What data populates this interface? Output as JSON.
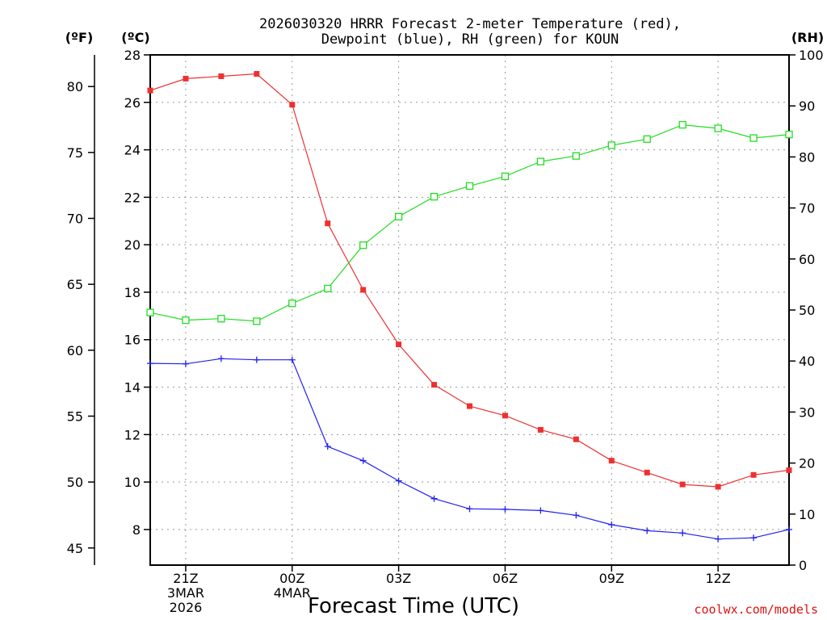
{
  "chart_data": {
    "type": "line",
    "title_line1": "2026030320 HRRR Forecast 2-meter Temperature (red),",
    "title_line2": "Dewpoint (blue), RH (green) for KOUN",
    "xlabel": "Forecast Time (UTC)",
    "credit": "coolwx.com/models",
    "units": {
      "f": "(ºF)",
      "c": "(ºC)",
      "rh": "(RH)"
    },
    "x_hours": [
      20,
      21,
      22,
      23,
      24,
      25,
      26,
      27,
      28,
      29,
      30,
      31,
      32,
      33,
      34,
      35,
      36,
      37,
      38
    ],
    "x_ticks": [
      {
        "hour": 21,
        "label": "21Z",
        "sub1": "3MAR",
        "sub2": "2026"
      },
      {
        "hour": 24,
        "label": "00Z",
        "sub1": "4MAR",
        "sub2": ""
      },
      {
        "hour": 27,
        "label": "03Z",
        "sub1": "",
        "sub2": ""
      },
      {
        "hour": 30,
        "label": "06Z",
        "sub1": "",
        "sub2": ""
      },
      {
        "hour": 33,
        "label": "09Z",
        "sub1": "",
        "sub2": ""
      },
      {
        "hour": 36,
        "label": "12Z",
        "sub1": "",
        "sub2": ""
      }
    ],
    "xlim": [
      20,
      38
    ],
    "ylim_c": [
      6.5,
      28
    ],
    "ylim_rh": [
      0,
      100
    ],
    "yticks_c": [
      8,
      10,
      12,
      14,
      16,
      18,
      20,
      22,
      24,
      26,
      28
    ],
    "yticks_f": [
      45,
      50,
      55,
      60,
      65,
      70,
      75,
      80
    ],
    "yticks_rh": [
      0,
      10,
      20,
      30,
      40,
      50,
      60,
      70,
      80,
      90,
      100
    ],
    "series": [
      {
        "name": "Temperature",
        "axis": "c",
        "color": "#ee3030",
        "marker": "filled-square",
        "values": [
          26.5,
          27.0,
          27.1,
          27.2,
          25.9,
          20.9,
          18.1,
          15.8,
          14.1,
          13.2,
          12.8,
          12.2,
          11.8,
          10.9,
          10.4,
          9.9,
          9.8,
          10.3,
          10.5
        ]
      },
      {
        "name": "Dewpoint",
        "axis": "c",
        "color": "#2020ee",
        "marker": "plus",
        "values": [
          15.0,
          14.98,
          15.2,
          15.15,
          15.15,
          11.5,
          10.9,
          10.05,
          9.3,
          8.87,
          8.85,
          8.8,
          8.6,
          8.2,
          7.95,
          7.85,
          7.6,
          7.65,
          8.0
        ]
      },
      {
        "name": "RH",
        "axis": "rh",
        "color": "#22dd22",
        "marker": "open-square",
        "values": [
          49.5,
          48.0,
          48.3,
          47.8,
          51.3,
          54.2,
          62.7,
          68.3,
          72.2,
          74.3,
          76.2,
          79.1,
          80.2,
          82.3,
          83.5,
          86.3,
          85.6,
          83.7,
          84.4
        ]
      }
    ]
  }
}
